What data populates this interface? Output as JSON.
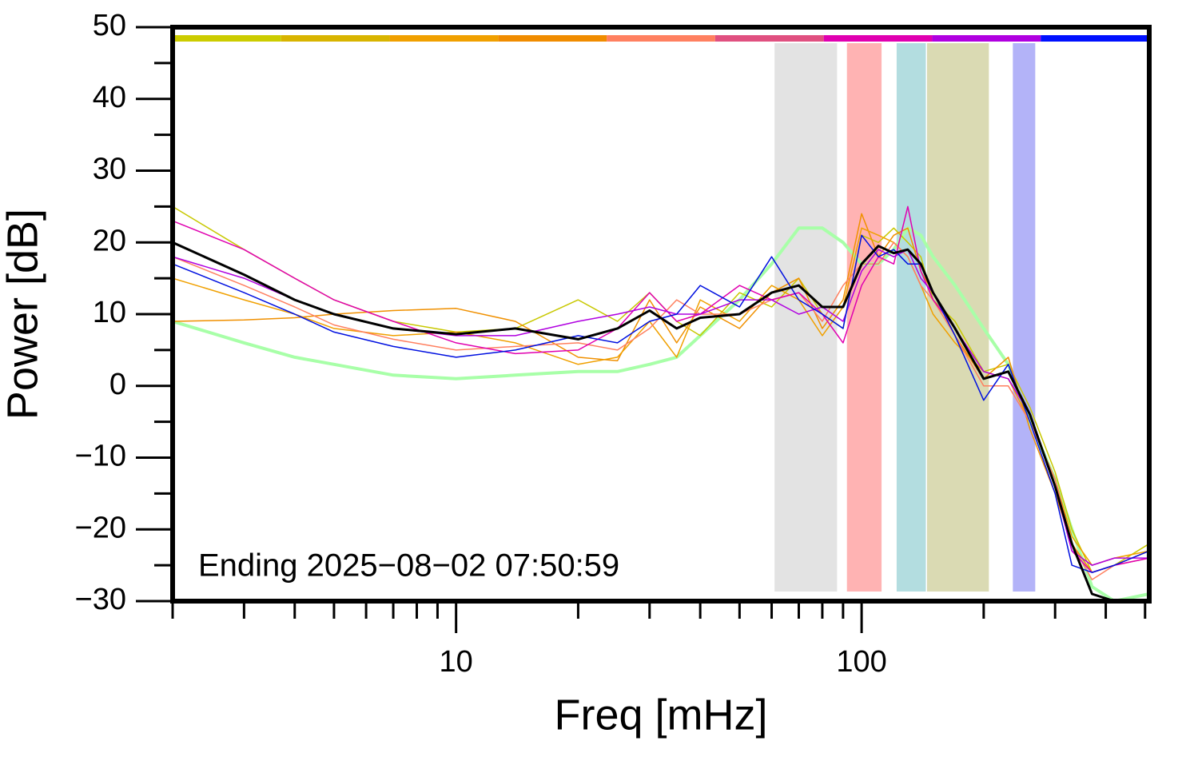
{
  "chart_data": {
    "type": "line",
    "x_label": "Freq [mHz]",
    "y_label": "Power [dB]",
    "annotation": "Ending 2025−08−02 07:50:59",
    "x_log": true,
    "xlim": [
      2,
      512
    ],
    "ylim": [
      -30,
      50
    ],
    "xticks": [
      10,
      100
    ],
    "xminorticks": [
      2,
      3,
      4,
      5,
      6,
      7,
      8,
      9,
      20,
      30,
      40,
      50,
      60,
      70,
      80,
      90,
      200,
      300,
      400,
      500
    ],
    "yticks": [
      {
        "value": -30,
        "label": "−30"
      },
      {
        "value": -20,
        "label": "−20"
      },
      {
        "value": -10,
        "label": "−10"
      },
      0,
      10,
      20,
      30,
      40,
      50
    ],
    "yminorticks": [
      -25,
      -15,
      -5,
      5,
      15,
      25,
      35,
      45
    ],
    "bands": [
      {
        "xlim": [
          61,
          87
        ],
        "color": "#e3e3e3"
      },
      {
        "xlim": [
          92,
          112
        ],
        "color": "#ffb3b3"
      },
      {
        "xlim": [
          122,
          144
        ],
        "color": "#b3dde0"
      },
      {
        "xlim": [
          145,
          206
        ],
        "color": "#dadab3"
      },
      {
        "xlim": [
          236,
          268
        ],
        "color": "#b3b3f8"
      }
    ],
    "colorbar": [
      "#cccc00",
      "#d8b400",
      "#f0a000",
      "#f08c00",
      "#ff8060",
      "#e05080",
      "#e000b0",
      "#b000e0",
      "#0010ff"
    ],
    "x": [
      2,
      3,
      4,
      5,
      7,
      10,
      14,
      20,
      25,
      30,
      35,
      40,
      50,
      60,
      70,
      80,
      90,
      100,
      110,
      120,
      130,
      140,
      150,
      170,
      200,
      230,
      260,
      300,
      330,
      370,
      420,
      512
    ],
    "series": [
      {
        "color": "#a8ffa8",
        "width": 4,
        "values": [
          9,
          6,
          4,
          3,
          1.5,
          1,
          1.5,
          2,
          2,
          3,
          4,
          7,
          12,
          17,
          22,
          22,
          20,
          17,
          17,
          19,
          22,
          21,
          18,
          14,
          8,
          3,
          -5,
          -13,
          -20,
          -28,
          -30,
          -29
        ]
      },
      {
        "color": "#c8c800",
        "width": 1.5,
        "values": [
          25,
          19,
          15,
          12,
          9,
          7.5,
          8,
          12,
          9,
          13,
          9,
          7,
          13,
          11,
          15,
          10,
          8,
          21,
          20,
          22,
          20,
          18,
          12,
          9,
          2,
          3,
          -3,
          -12,
          -20,
          -26,
          -25,
          -22
        ]
      },
      {
        "color": "#f09000",
        "width": 1.5,
        "values": [
          9,
          9.2,
          9.5,
          10,
          10.5,
          10.8,
          9,
          4,
          3.5,
          12,
          6,
          11,
          8,
          13,
          15,
          8,
          12,
          24,
          18,
          21,
          22,
          16,
          13,
          7,
          1,
          4,
          -6,
          -15,
          -22,
          -26,
          -25,
          -23
        ]
      },
      {
        "color": "#f0a000",
        "width": 1.5,
        "values": [
          15,
          12,
          10,
          8,
          7,
          7.5,
          6,
          3,
          4,
          9,
          4,
          12,
          9,
          14,
          12,
          7,
          11,
          22,
          21,
          20,
          18,
          14,
          10,
          6,
          2,
          1,
          -5,
          -13,
          -21,
          -25,
          -24,
          -23
        ]
      },
      {
        "color": "#ff8060",
        "width": 1.5,
        "values": [
          18,
          14,
          11,
          8.5,
          6.5,
          5,
          5.5,
          6,
          5,
          8,
          12,
          10,
          10,
          12,
          13,
          9,
          14,
          17,
          17,
          20,
          18,
          14,
          12,
          7,
          0,
          0,
          -5,
          -13,
          -22,
          -27,
          -25,
          -24
        ]
      },
      {
        "color": "#e000b0",
        "width": 1.5,
        "values": [
          23,
          19,
          15,
          12,
          9,
          6,
          4.5,
          5,
          8,
          13,
          9,
          10,
          14,
          12,
          13,
          10,
          6,
          14,
          18,
          17,
          25,
          16,
          12,
          8,
          1,
          2,
          -4,
          -14,
          -23,
          -26,
          -25,
          -24
        ]
      },
      {
        "color": "#b000e0",
        "width": 1.5,
        "values": [
          18,
          15,
          12,
          10,
          8,
          7,
          7,
          9,
          10,
          11,
          10,
          10,
          12,
          12,
          10,
          11,
          9,
          16,
          19,
          18,
          19,
          15,
          13,
          8,
          2,
          1,
          -4,
          -14,
          -23,
          -25,
          -24,
          -24
        ]
      },
      {
        "color": "#0010e0",
        "width": 1.5,
        "values": [
          17,
          13,
          10,
          7.5,
          5.5,
          4,
          5,
          7,
          6,
          9,
          10,
          14,
          11,
          18,
          12,
          10,
          8,
          21,
          18,
          19,
          17,
          17,
          13,
          7,
          -2,
          3,
          -5,
          -15,
          -25,
          -26,
          -25,
          -23
        ]
      },
      {
        "color": "#000000",
        "width": 3,
        "values": [
          20,
          15.5,
          12,
          10,
          8,
          7.2,
          8,
          6.5,
          8,
          10.5,
          8,
          9.5,
          10,
          13,
          14,
          11,
          11,
          17,
          19.5,
          18.5,
          19,
          17,
          13,
          8,
          1,
          2,
          -4,
          -14,
          -22,
          -29,
          -30,
          -30
        ]
      }
    ]
  }
}
